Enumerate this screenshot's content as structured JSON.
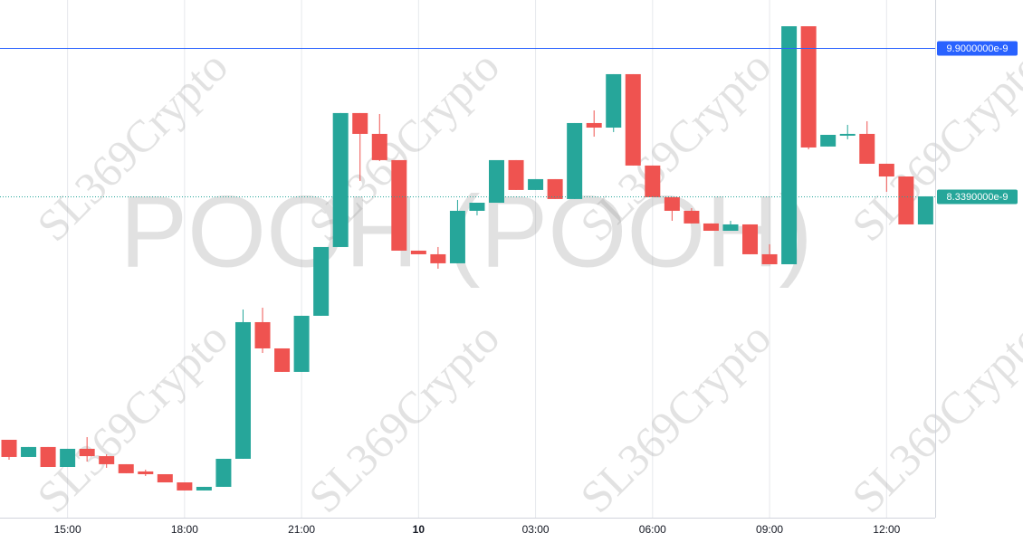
{
  "chart_data": {
    "type": "candlestick",
    "watermark": "POOH (POOH)",
    "brand_watermark": "SL369Crypto",
    "categories": [
      null,
      null,
      null,
      "15:00",
      null,
      null,
      null,
      null,
      null,
      "18:00",
      null,
      null,
      null,
      null,
      null,
      "21:00",
      null,
      null,
      null,
      null,
      null,
      "10",
      null,
      null,
      null,
      null,
      null,
      "03:00",
      null,
      null,
      null,
      null,
      null,
      "06:00",
      null,
      null,
      null,
      null,
      null,
      "09:00",
      null,
      null,
      null,
      null,
      null,
      "12:00",
      null,
      null
    ],
    "open": [
      5.779e-09,
      5.598e-09,
      5.703e-09,
      5.493e-09,
      5.684e-09,
      5.607e-09,
      5.522e-09,
      5.446e-09,
      5.417e-09,
      5.331e-09,
      5.246e-09,
      5.284e-09,
      5.579e-09,
      7.016e-09,
      6.74e-09,
      6.493e-09,
      7.083e-09,
      7.806e-09,
      9.215e-09,
      8.996e-09,
      8.72e-09,
      7.768e-09,
      7.73e-09,
      7.635e-09,
      8.187e-09,
      8.272e-09,
      8.72e-09,
      8.406e-09,
      8.52e-09,
      8.311e-09,
      9.11e-09,
      9.062e-09,
      9.624e-09,
      8.663e-09,
      8.33e-09,
      8.187e-09,
      8.054e-09,
      7.977e-09,
      8.044e-09,
      7.73e-09,
      7.625e-09,
      1.0128e-08,
      8.863e-09,
      8.977e-09,
      8.996e-09,
      8.682e-09,
      8.548e-09,
      8.044e-09
    ],
    "high": [
      5.779e-09,
      5.703e-09,
      5.703e-09,
      5.684e-09,
      5.807e-09,
      5.626e-09,
      5.522e-09,
      5.465e-09,
      5.417e-09,
      5.331e-09,
      5.284e-09,
      5.579e-09,
      7.149e-09,
      7.168e-09,
      6.74e-09,
      7.083e-09,
      7.806e-09,
      9.215e-09,
      9.215e-09,
      9.205e-09,
      8.72e-09,
      7.768e-09,
      7.806e-09,
      8.301e-09,
      8.272e-09,
      8.72e-09,
      8.72e-09,
      8.52e-09,
      8.52e-09,
      9.11e-09,
      9.243e-09,
      9.624e-09,
      9.624e-09,
      8.663e-09,
      8.33e-09,
      8.215e-09,
      8.054e-09,
      8.082e-09,
      8.044e-09,
      7.835e-09,
      1.0128e-08,
      1.0128e-08,
      8.986e-09,
      9.091e-09,
      9.129e-09,
      8.682e-09,
      8.548e-09,
      8.339e-09
    ],
    "low": [
      5.569e-09,
      5.598e-09,
      5.493e-09,
      5.493e-09,
      5.55e-09,
      5.484e-09,
      5.427e-09,
      5.398e-09,
      5.331e-09,
      5.246e-09,
      5.246e-09,
      5.284e-09,
      5.579e-09,
      6.692e-09,
      6.493e-09,
      6.493e-09,
      7.083e-09,
      7.806e-09,
      8.501e-09,
      8.71e-09,
      7.768e-09,
      7.73e-09,
      7.578e-09,
      7.635e-09,
      8.139e-09,
      8.272e-09,
      8.406e-09,
      8.406e-09,
      8.311e-09,
      8.311e-09,
      8.967e-09,
      9.015e-09,
      8.663e-09,
      8.33e-09,
      8.082e-09,
      8.054e-09,
      7.977e-09,
      7.977e-09,
      7.73e-09,
      7.625e-09,
      7.625e-09,
      8.834e-09,
      8.863e-09,
      8.939e-09,
      8.682e-09,
      8.387e-09,
      8.044e-09,
      8.044e-09
    ],
    "close": [
      5.598e-09,
      5.703e-09,
      5.493e-09,
      5.684e-09,
      5.607e-09,
      5.522e-09,
      5.427e-09,
      5.417e-09,
      5.331e-09,
      5.246e-09,
      5.284e-09,
      5.579e-09,
      7.016e-09,
      6.74e-09,
      6.493e-09,
      7.083e-09,
      7.806e-09,
      9.215e-09,
      8.996e-09,
      8.72e-09,
      7.768e-09,
      7.73e-09,
      7.635e-09,
      8.187e-09,
      8.272e-09,
      8.72e-09,
      8.406e-09,
      8.52e-09,
      8.311e-09,
      9.11e-09,
      9.062e-09,
      9.624e-09,
      8.663e-09,
      8.33e-09,
      8.187e-09,
      8.054e-09,
      7.977e-09,
      8.044e-09,
      7.73e-09,
      7.625e-09,
      1.0128e-08,
      8.853e-09,
      8.986e-09,
      8.996e-09,
      8.682e-09,
      8.548e-09,
      8.044e-09,
      8.339e-09
    ],
    "up_color": "#26a69a",
    "down_color": "#ef5350",
    "ylim": [
      4.96e-09,
      1.0404e-08
    ],
    "price_lines": [
      {
        "value": 9.9e-09,
        "label": "9.9000000e-9",
        "color": "#2962ff",
        "style": "solid"
      },
      {
        "value": 8.339e-09,
        "label": "8.3390000e-9",
        "color": "#26a69a",
        "style": "dotted"
      }
    ],
    "grid": true
  }
}
